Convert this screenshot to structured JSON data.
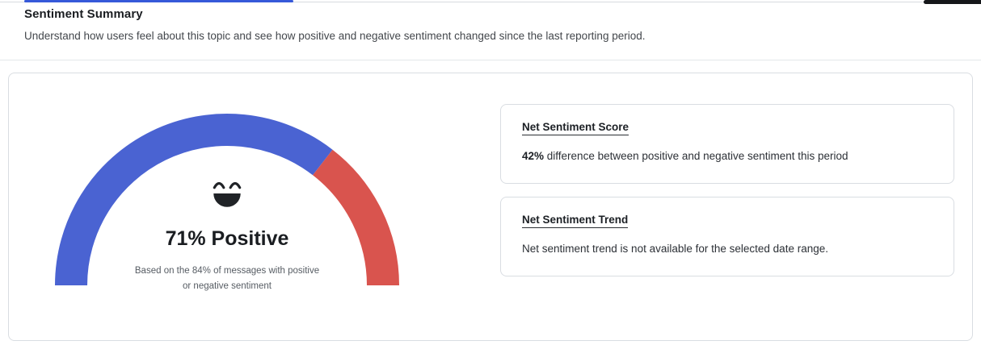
{
  "header": {
    "title": "Sentiment Summary",
    "subtitle": "Understand how users feel about this topic and see how positive and negative sentiment changed since the last reporting period."
  },
  "gauge": {
    "positive_pct": 71,
    "label": "71% Positive",
    "caption_line1": "Based on the 84% of messages with positive",
    "caption_line2": "or negative sentiment",
    "emoji": "grinning-face-icon",
    "colors": {
      "positive": "#4a63d2",
      "negative": "#d9544e",
      "accent": "#3659d9",
      "emoji": "#202327"
    }
  },
  "cards": [
    {
      "title": "Net Sentiment Score",
      "value": "42%",
      "text": " difference between positive and negative sentiment this period"
    },
    {
      "title": "Net Sentiment Trend",
      "value": "",
      "text": "Net sentiment trend is not available for the selected date range."
    }
  ],
  "chart_data": {
    "type": "gauge",
    "title": "Sentiment Summary",
    "value_label": "71% Positive",
    "coverage_note": "Based on the 84% of messages with positive or negative sentiment",
    "net_sentiment_score_pct": 42,
    "segments": [
      {
        "label": "Positive",
        "value": 71,
        "color": "#4a63d2"
      },
      {
        "label": "Negative",
        "value": 29,
        "color": "#d9544e"
      }
    ],
    "range": [
      0,
      100
    ]
  }
}
